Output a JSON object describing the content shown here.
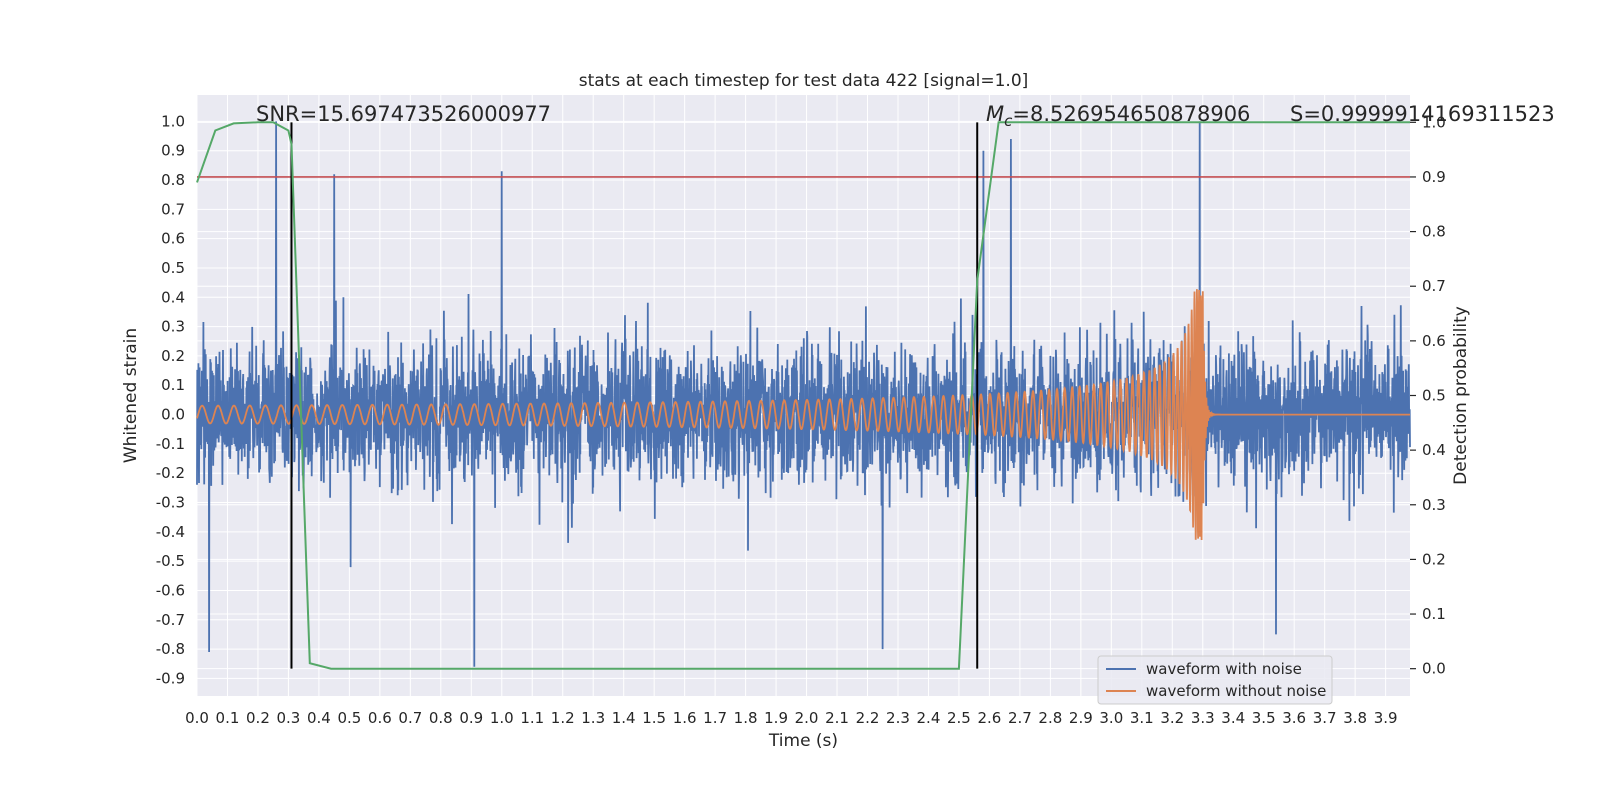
{
  "chart_data": {
    "type": "line",
    "title": "stats at each timestep for test data 422 [signal=1.0]",
    "xlabel": "Time (s)",
    "ylabel": "Whitened strain",
    "y2label": "Detection probability",
    "xlim": [
      0.0,
      3.98
    ],
    "ylim": [
      -0.96,
      1.09
    ],
    "y2lim": [
      -0.05,
      1.05
    ],
    "xticks": [
      0.0,
      0.1,
      0.2,
      0.3,
      0.4,
      0.5,
      0.6,
      0.7,
      0.8,
      0.9,
      1.0,
      1.1,
      1.2,
      1.3,
      1.4,
      1.5,
      1.6,
      1.7,
      1.8,
      1.9,
      2.0,
      2.1,
      2.2,
      2.3,
      2.4,
      2.5,
      2.6,
      2.7,
      2.8,
      2.9,
      3.0,
      3.1,
      3.2,
      3.3,
      3.4,
      3.5,
      3.6,
      3.7,
      3.8,
      3.9
    ],
    "xtick_labels": [
      "0.0",
      "0.1",
      "0.2",
      "0.3",
      "0.4",
      "0.5",
      "0.6",
      "0.7",
      "0.8",
      "0.9",
      "1.0",
      "1.1",
      "1.2",
      "1.3",
      "1.4",
      "1.5",
      "1.6",
      "1.7",
      "1.8",
      "1.9",
      "2.0",
      "2.1",
      "2.2",
      "2.3",
      "2.4",
      "2.5",
      "2.6",
      "2.7",
      "2.8",
      "2.9",
      "3.0",
      "3.1",
      "3.2",
      "3.3",
      "3.4",
      "3.5",
      "3.6",
      "3.7",
      "3.8",
      "3.9"
    ],
    "yticks": [
      1.0,
      0.9,
      0.8,
      0.7,
      0.6,
      0.5,
      0.4,
      0.3,
      0.2,
      0.1,
      0.0,
      -0.1,
      -0.2,
      -0.3,
      -0.4,
      -0.5,
      -0.6,
      -0.7,
      -0.8,
      -0.9
    ],
    "ytick_labels": [
      "1.0",
      "0.9",
      "0.8",
      "0.7",
      "0.6",
      "0.5",
      "0.4",
      "0.3",
      "0.2",
      "0.1",
      "0.0",
      "-0.1",
      "-0.2",
      "-0.3",
      "-0.4",
      "-0.5",
      "-0.6",
      "-0.7",
      "-0.8",
      "-0.9"
    ],
    "y2ticks": [
      1.0,
      0.9,
      0.8,
      0.7,
      0.6,
      0.5,
      0.4,
      0.3,
      0.2,
      0.1,
      0.0
    ],
    "y2tick_labels": [
      "1.0",
      "0.9",
      "0.8",
      "0.7",
      "0.6",
      "0.5",
      "0.4",
      "0.3",
      "0.2",
      "0.1",
      "0.0"
    ],
    "grid": true,
    "annotations": {
      "snr": "SNR=15.697473526000977",
      "mc_symbol": "M",
      "mc_subscript": "c",
      "mc_value": "=8.526954650878906",
      "s": "S=0.9999914169311523"
    },
    "vertical_lines": [
      0.31,
      2.56
    ],
    "threshold": {
      "name": "detection threshold",
      "y2": 0.9,
      "color": "#c44e52"
    },
    "series": [
      {
        "name": "waveform with noise",
        "color": "#4c72b0",
        "description": "noisy whitened strain, amplitude roughly -0.86 to 1.0, sampled densely",
        "notable_peaks": [
          {
            "x": 0.26,
            "y": 1.0
          },
          {
            "x": 0.45,
            "y": 0.82
          },
          {
            "x": 1.0,
            "y": 0.83
          },
          {
            "x": 2.58,
            "y": 0.9
          },
          {
            "x": 2.67,
            "y": 0.94
          },
          {
            "x": 3.29,
            "y": 1.0
          },
          {
            "x": 0.04,
            "y": -0.81
          },
          {
            "x": 0.91,
            "y": -0.86
          },
          {
            "x": 2.25,
            "y": -0.8
          },
          {
            "x": 3.54,
            "y": -0.75
          }
        ]
      },
      {
        "name": "waveform without noise",
        "color": "#dd8452",
        "description": "chirp signal, amplitude ~0.03 growing to ~0.43 with rising frequency, merger near 3.30 s then ringdown to 0",
        "chirp": {
          "t_start": 0.0,
          "t_merger": 3.3,
          "amp_start": 0.03,
          "amp_peak": 0.43,
          "f_start_hz": 19
        }
      },
      {
        "name": "detection probability",
        "color": "#55a868",
        "axis": "y2",
        "x": [
          0.0,
          0.06,
          0.12,
          0.2,
          0.25,
          0.3,
          0.31,
          0.37,
          0.44,
          0.6,
          1.0,
          1.5,
          2.0,
          2.4,
          2.5,
          2.56,
          2.63,
          2.7,
          3.0,
          3.5,
          3.98
        ],
        "y": [
          0.89,
          0.985,
          0.998,
          1.0,
          1.0,
          0.985,
          0.96,
          0.01,
          0.0,
          0.0,
          0.0,
          0.0,
          0.0,
          0.0,
          0.0,
          0.71,
          1.0,
          1.0,
          1.0,
          1.0,
          1.0
        ]
      }
    ],
    "legend": {
      "position": "bottom-right",
      "entries": [
        {
          "label": "waveform with noise",
          "color": "#4c72b0"
        },
        {
          "label": "waveform without noise",
          "color": "#dd8452"
        }
      ]
    },
    "colors": {
      "background": "#eaeaf2",
      "grid": "#ffffff",
      "vline": "#000000"
    }
  }
}
